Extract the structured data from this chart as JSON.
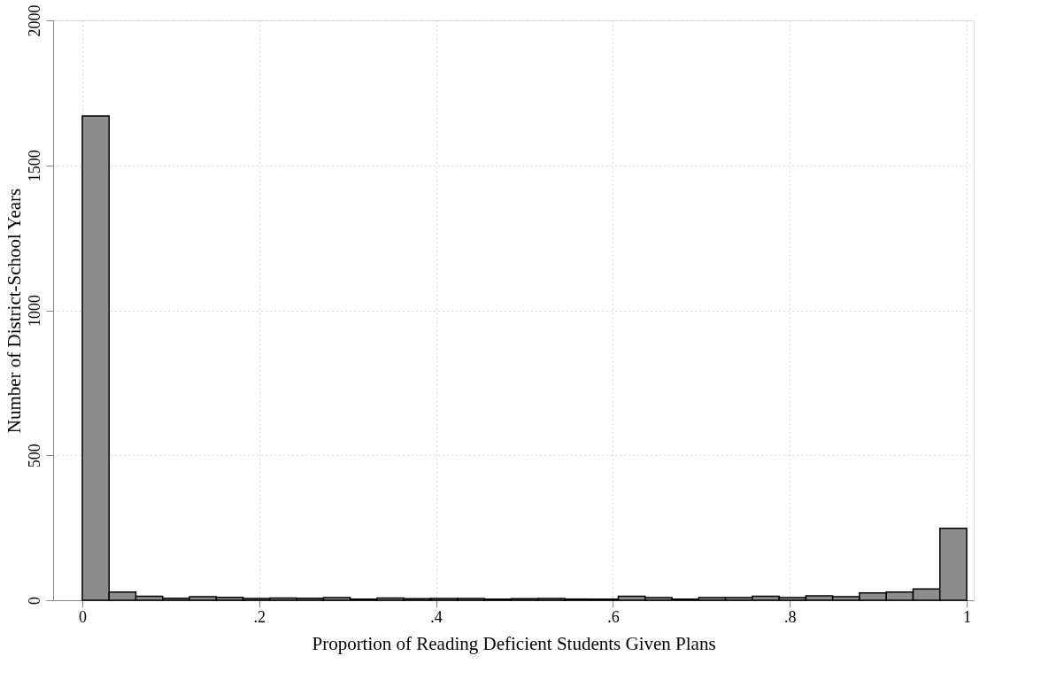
{
  "chart_data": {
    "type": "histogram",
    "xlabel": "Proportion of Reading Deficient Students Given Plans",
    "ylabel": "Number of District-School Years",
    "bins": [
      0,
      0.0303,
      0.0606,
      0.0909,
      0.1212,
      0.1515,
      0.1818,
      0.2121,
      0.2424,
      0.2727,
      0.303,
      0.3333,
      0.3636,
      0.3939,
      0.4242,
      0.4545,
      0.4848,
      0.5152,
      0.5455,
      0.5758,
      0.6061,
      0.6364,
      0.6667,
      0.697,
      0.7273,
      0.7576,
      0.7879,
      0.8182,
      0.8485,
      0.8788,
      0.9091,
      0.9394,
      0.9697,
      1
    ],
    "values": [
      1670,
      28,
      14,
      7,
      12,
      10,
      6,
      8,
      7,
      9,
      4,
      8,
      5,
      6,
      6,
      4,
      5,
      6,
      4,
      4,
      14,
      9,
      4,
      9,
      9,
      14,
      9,
      15,
      12,
      25,
      28,
      39,
      248
    ],
    "color": "#8c8c8c",
    "xlim": [
      -0.033,
      1.008
    ],
    "xticks": [
      0,
      {
        "value": 0.2,
        "label": ".2"
      },
      {
        "value": 0.4,
        "label": ".4"
      },
      {
        "value": 0.6,
        "label": ".6"
      },
      {
        "value": 0.8,
        "label": ".8"
      },
      1
    ],
    "ylim": [
      0,
      2000
    ],
    "yticks": [
      0,
      500,
      1000,
      1500,
      2000
    ],
    "grid": true
  }
}
